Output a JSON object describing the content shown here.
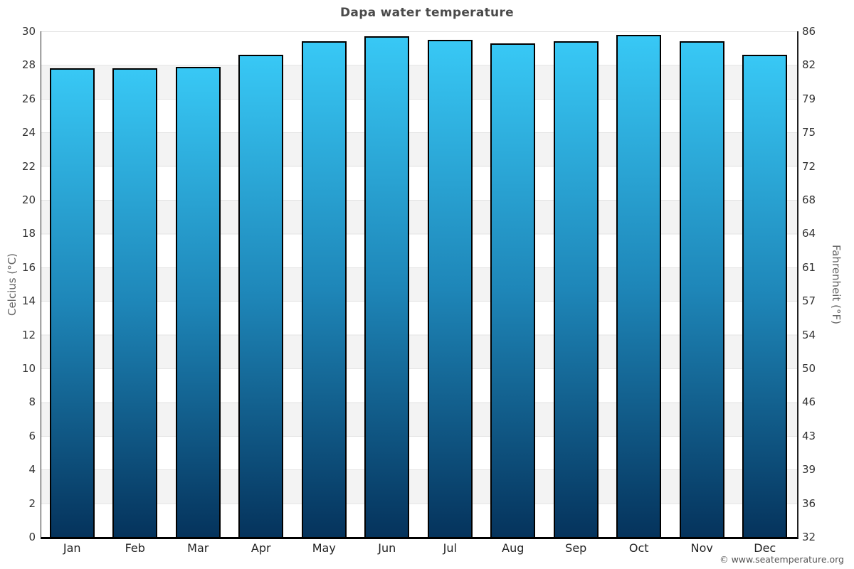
{
  "chart_data": {
    "type": "bar",
    "title": "Dapa water temperature",
    "categories": [
      "Jan",
      "Feb",
      "Mar",
      "Apr",
      "May",
      "Jun",
      "Jul",
      "Aug",
      "Sep",
      "Oct",
      "Nov",
      "Dec"
    ],
    "values": [
      27.8,
      27.8,
      27.9,
      28.6,
      29.4,
      29.7,
      29.5,
      29.3,
      29.4,
      29.8,
      29.4,
      28.6
    ],
    "xlabel": "",
    "ylabel_left": "Celcius (°C)",
    "ylabel_right": "Fahrenheit (°F)",
    "ylim": [
      0,
      30
    ],
    "yticks_left": [
      30,
      28,
      26,
      24,
      22,
      20,
      18,
      16,
      14,
      12,
      10,
      8,
      6,
      4,
      2,
      0
    ],
    "yticks_right": [
      86,
      82,
      79,
      75,
      72,
      68,
      64,
      61,
      57,
      54,
      50,
      46,
      43,
      39,
      36,
      32
    ],
    "grid": "horizontal alternating bands every 2°C",
    "legend": "none",
    "footer": "© www.seatemperature.org",
    "colors": {
      "bar_gradient_top": "#38c8f5",
      "bar_gradient_mid": "#1e86b8",
      "bar_gradient_bottom": "#05335c",
      "bar_border": "#000000",
      "band_gray": "#f3f3f3",
      "gridline": "#e3e3e3",
      "title_text": "#4a4a4a",
      "tick_text": "#333333",
      "axis_label_text": "#666666",
      "footer_text": "#555555"
    }
  }
}
